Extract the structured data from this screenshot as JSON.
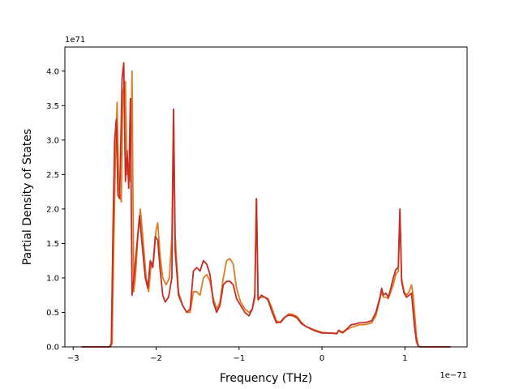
{
  "chart_data": {
    "type": "line",
    "title": "",
    "xlabel": "Frequency (THz)",
    "ylabel": "Partial Density of States",
    "x_offset_label": "1e−71",
    "y_offset_label": "1e71",
    "xlim": [
      -3.1,
      1.75
    ],
    "ylim": [
      0,
      4.35
    ],
    "x_ticks": [
      -3,
      -2,
      -1,
      0,
      1
    ],
    "x_tick_labels": [
      "−3",
      "−2",
      "−1",
      "0",
      "1"
    ],
    "y_ticks": [
      0,
      0.5,
      1.0,
      1.5,
      2.0,
      2.5,
      3.0,
      3.5,
      4.0
    ],
    "y_tick_labels": [
      "0.0",
      "0.5",
      "1.0",
      "1.5",
      "2.0",
      "2.5",
      "3.0",
      "3.5",
      "4.0"
    ],
    "grid": false,
    "series": [
      {
        "color": "#e07b22",
        "points": [
          [
            -2.9,
            0
          ],
          [
            -2.55,
            0
          ],
          [
            -2.53,
            0.05
          ],
          [
            -2.51,
            1.5
          ],
          [
            -2.49,
            2.8
          ],
          [
            -2.47,
            3.55
          ],
          [
            -2.45,
            2.3
          ],
          [
            -2.42,
            2.1
          ],
          [
            -2.4,
            3.7
          ],
          [
            -2.37,
            3.85
          ],
          [
            -2.35,
            2.5
          ],
          [
            -2.33,
            2.6
          ],
          [
            -2.31,
            2.4
          ],
          [
            -2.29,
            4.0
          ],
          [
            -2.27,
            0.8
          ],
          [
            -2.25,
            1.0
          ],
          [
            -2.22,
            1.6
          ],
          [
            -2.19,
            2.0
          ],
          [
            -2.16,
            1.6
          ],
          [
            -2.12,
            1.0
          ],
          [
            -2.09,
            0.8
          ],
          [
            -2.06,
            1.2
          ],
          [
            -2.03,
            1.25
          ],
          [
            -2.0,
            1.7
          ],
          [
            -1.98,
            1.8
          ],
          [
            -1.95,
            1.3
          ],
          [
            -1.92,
            1.0
          ],
          [
            -1.88,
            0.9
          ],
          [
            -1.84,
            1.0
          ],
          [
            -1.81,
            1.6
          ],
          [
            -1.79,
            3.4
          ],
          [
            -1.77,
            1.6
          ],
          [
            -1.73,
            0.8
          ],
          [
            -1.68,
            0.6
          ],
          [
            -1.63,
            0.5
          ],
          [
            -1.59,
            0.5
          ],
          [
            -1.55,
            0.8
          ],
          [
            -1.51,
            0.8
          ],
          [
            -1.47,
            0.75
          ],
          [
            -1.43,
            1.0
          ],
          [
            -1.39,
            1.05
          ],
          [
            -1.35,
            0.95
          ],
          [
            -1.31,
            0.7
          ],
          [
            -1.27,
            0.55
          ],
          [
            -1.23,
            0.65
          ],
          [
            -1.19,
            1.0
          ],
          [
            -1.15,
            1.25
          ],
          [
            -1.11,
            1.28
          ],
          [
            -1.07,
            1.2
          ],
          [
            -1.03,
            0.85
          ],
          [
            -0.98,
            0.65
          ],
          [
            -0.93,
            0.55
          ],
          [
            -0.88,
            0.5
          ],
          [
            -0.84,
            0.55
          ],
          [
            -0.81,
            0.7
          ],
          [
            -0.79,
            2.15
          ],
          [
            -0.77,
            0.7
          ],
          [
            -0.73,
            0.72
          ],
          [
            -0.69,
            0.72
          ],
          [
            -0.65,
            0.7
          ],
          [
            -0.6,
            0.55
          ],
          [
            -0.55,
            0.38
          ],
          [
            -0.5,
            0.35
          ],
          [
            -0.45,
            0.42
          ],
          [
            -0.4,
            0.48
          ],
          [
            -0.35,
            0.47
          ],
          [
            -0.3,
            0.44
          ],
          [
            -0.25,
            0.36
          ],
          [
            -0.2,
            0.3
          ],
          [
            -0.1,
            0.25
          ],
          [
            0.0,
            0.21
          ],
          [
            0.1,
            0.2
          ],
          [
            0.18,
            0.2
          ],
          [
            0.2,
            0.23
          ],
          [
            0.25,
            0.2
          ],
          [
            0.3,
            0.25
          ],
          [
            0.35,
            0.28
          ],
          [
            0.4,
            0.3
          ],
          [
            0.45,
            0.32
          ],
          [
            0.5,
            0.32
          ],
          [
            0.55,
            0.33
          ],
          [
            0.6,
            0.35
          ],
          [
            0.65,
            0.45
          ],
          [
            0.7,
            0.7
          ],
          [
            0.72,
            0.8
          ],
          [
            0.74,
            0.72
          ],
          [
            0.77,
            0.72
          ],
          [
            0.8,
            0.7
          ],
          [
            0.83,
            0.8
          ],
          [
            0.86,
            0.9
          ],
          [
            0.89,
            1.05
          ],
          [
            0.92,
            1.1
          ],
          [
            0.94,
            1.95
          ],
          [
            0.96,
            1.0
          ],
          [
            0.99,
            0.8
          ],
          [
            1.02,
            0.75
          ],
          [
            1.05,
            0.8
          ],
          [
            1.08,
            0.9
          ],
          [
            1.1,
            0.75
          ],
          [
            1.12,
            0.45
          ],
          [
            1.14,
            0.15
          ],
          [
            1.16,
            0.02
          ],
          [
            1.18,
            0
          ],
          [
            1.55,
            0
          ]
        ]
      },
      {
        "color": "#c62c25",
        "points": [
          [
            -2.9,
            0
          ],
          [
            -2.56,
            0
          ],
          [
            -2.54,
            0.05
          ],
          [
            -2.52,
            1.7
          ],
          [
            -2.5,
            3.0
          ],
          [
            -2.48,
            3.3
          ],
          [
            -2.46,
            2.2
          ],
          [
            -2.44,
            2.15
          ],
          [
            -2.41,
            3.9
          ],
          [
            -2.39,
            4.12
          ],
          [
            -2.37,
            2.4
          ],
          [
            -2.35,
            2.85
          ],
          [
            -2.33,
            2.3
          ],
          [
            -2.31,
            3.6
          ],
          [
            -2.29,
            0.75
          ],
          [
            -2.26,
            1.1
          ],
          [
            -2.23,
            1.5
          ],
          [
            -2.2,
            1.9
          ],
          [
            -2.17,
            1.5
          ],
          [
            -2.13,
            1.0
          ],
          [
            -2.1,
            0.85
          ],
          [
            -2.07,
            1.25
          ],
          [
            -2.04,
            1.15
          ],
          [
            -2.01,
            1.6
          ],
          [
            -1.98,
            1.55
          ],
          [
            -1.95,
            1.1
          ],
          [
            -1.92,
            0.75
          ],
          [
            -1.89,
            0.65
          ],
          [
            -1.85,
            0.72
          ],
          [
            -1.81,
            1.0
          ],
          [
            -1.79,
            3.45
          ],
          [
            -1.77,
            1.4
          ],
          [
            -1.73,
            0.75
          ],
          [
            -1.68,
            0.6
          ],
          [
            -1.63,
            0.5
          ],
          [
            -1.59,
            0.55
          ],
          [
            -1.55,
            1.1
          ],
          [
            -1.51,
            1.15
          ],
          [
            -1.47,
            1.1
          ],
          [
            -1.43,
            1.25
          ],
          [
            -1.39,
            1.2
          ],
          [
            -1.35,
            1.05
          ],
          [
            -1.31,
            0.65
          ],
          [
            -1.27,
            0.5
          ],
          [
            -1.23,
            0.6
          ],
          [
            -1.19,
            0.9
          ],
          [
            -1.15,
            0.95
          ],
          [
            -1.11,
            0.95
          ],
          [
            -1.07,
            0.9
          ],
          [
            -1.03,
            0.7
          ],
          [
            -0.98,
            0.6
          ],
          [
            -0.93,
            0.5
          ],
          [
            -0.88,
            0.45
          ],
          [
            -0.84,
            0.55
          ],
          [
            -0.81,
            0.75
          ],
          [
            -0.79,
            2.15
          ],
          [
            -0.77,
            0.68
          ],
          [
            -0.73,
            0.75
          ],
          [
            -0.69,
            0.72
          ],
          [
            -0.65,
            0.68
          ],
          [
            -0.6,
            0.5
          ],
          [
            -0.55,
            0.35
          ],
          [
            -0.5,
            0.36
          ],
          [
            -0.45,
            0.43
          ],
          [
            -0.4,
            0.46
          ],
          [
            -0.35,
            0.45
          ],
          [
            -0.3,
            0.42
          ],
          [
            -0.25,
            0.34
          ],
          [
            -0.2,
            0.3
          ],
          [
            -0.1,
            0.24
          ],
          [
            0.0,
            0.2
          ],
          [
            0.1,
            0.2
          ],
          [
            0.18,
            0.19
          ],
          [
            0.2,
            0.24
          ],
          [
            0.25,
            0.21
          ],
          [
            0.3,
            0.26
          ],
          [
            0.35,
            0.32
          ],
          [
            0.4,
            0.33
          ],
          [
            0.45,
            0.35
          ],
          [
            0.5,
            0.35
          ],
          [
            0.55,
            0.36
          ],
          [
            0.6,
            0.38
          ],
          [
            0.65,
            0.5
          ],
          [
            0.7,
            0.72
          ],
          [
            0.72,
            0.85
          ],
          [
            0.74,
            0.75
          ],
          [
            0.77,
            0.78
          ],
          [
            0.8,
            0.72
          ],
          [
            0.83,
            0.85
          ],
          [
            0.86,
            1.0
          ],
          [
            0.89,
            1.12
          ],
          [
            0.92,
            1.15
          ],
          [
            0.94,
            2.0
          ],
          [
            0.96,
            0.95
          ],
          [
            0.99,
            0.78
          ],
          [
            1.02,
            0.72
          ],
          [
            1.05,
            0.75
          ],
          [
            1.08,
            0.78
          ],
          [
            1.1,
            0.5
          ],
          [
            1.12,
            0.25
          ],
          [
            1.14,
            0.08
          ],
          [
            1.16,
            0.01
          ],
          [
            1.18,
            0
          ],
          [
            1.55,
            0
          ]
        ]
      }
    ]
  }
}
